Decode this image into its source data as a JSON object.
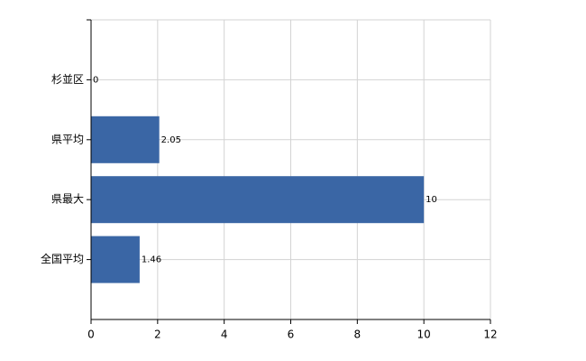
{
  "chart_data": {
    "type": "bar",
    "orientation": "horizontal",
    "categories": [
      "杉並区",
      "県平均",
      "県最大",
      "全国平均"
    ],
    "values": [
      0,
      2.05,
      10,
      1.46
    ],
    "color": "#3a66a5",
    "xlim": [
      0,
      12
    ],
    "xticks": [
      0,
      2,
      4,
      6,
      8,
      10,
      12
    ],
    "grid": true
  }
}
